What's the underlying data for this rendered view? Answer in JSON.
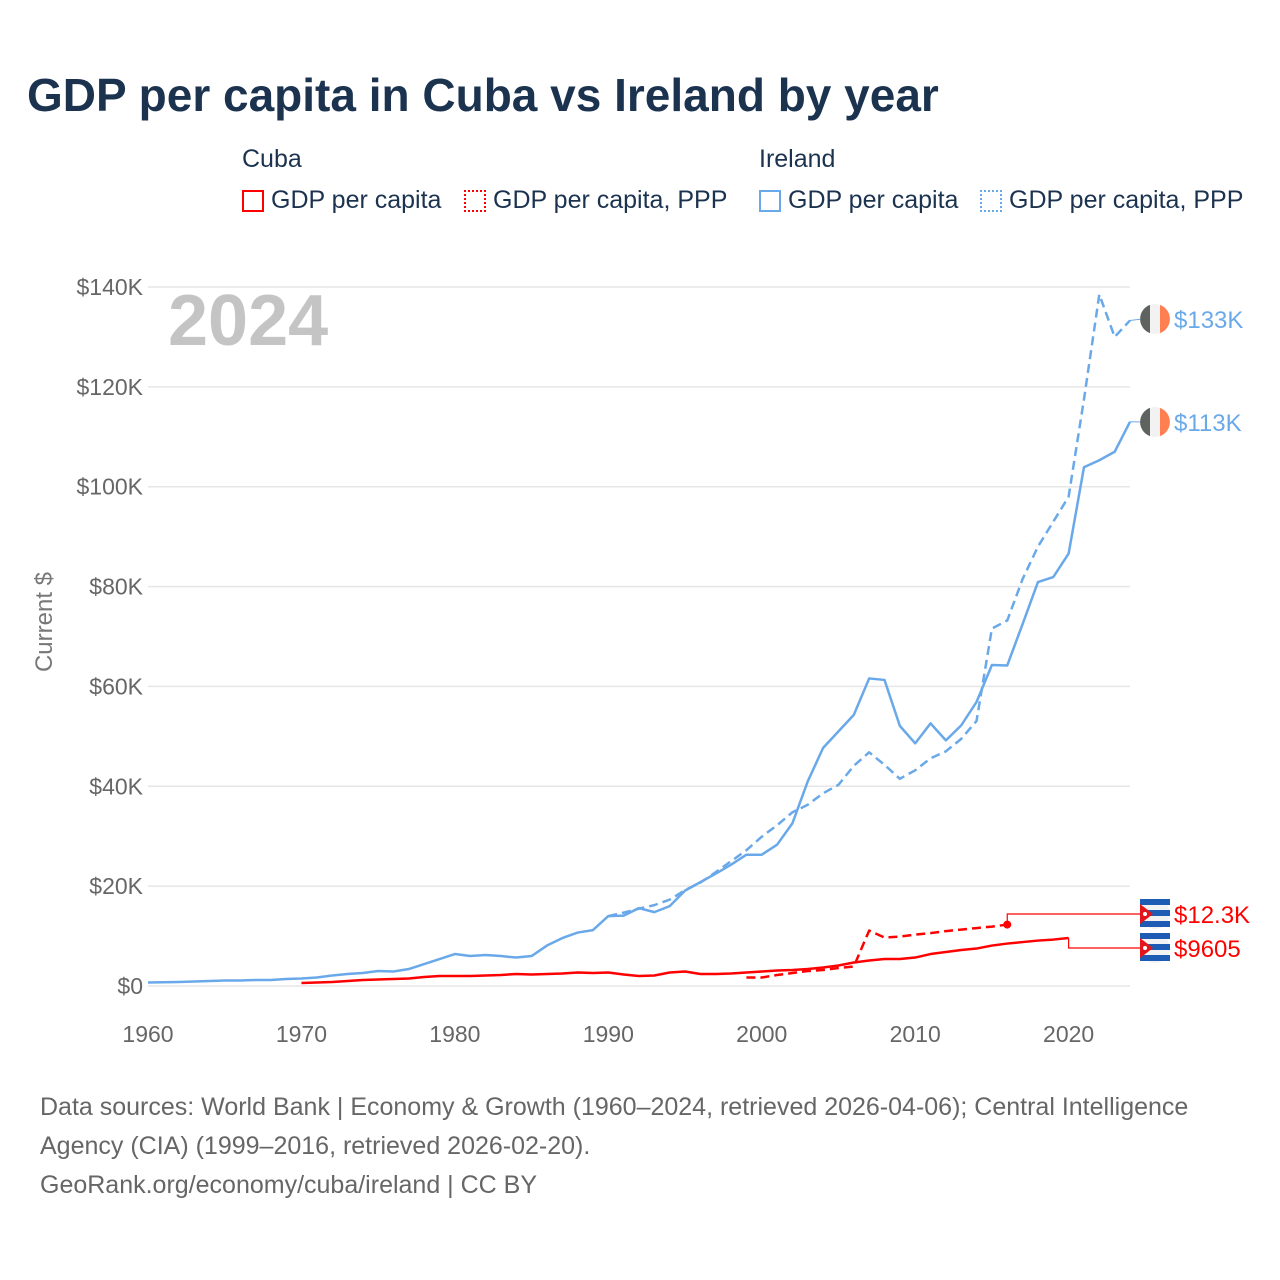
{
  "title": "GDP per capita in Cuba vs Ireland by year",
  "legend": {
    "groups": [
      {
        "label": "Cuba",
        "items": [
          "GDP per capita",
          "GDP per capita, PPP"
        ]
      },
      {
        "label": "Ireland",
        "items": [
          "GDP per capita",
          "GDP per capita, PPP"
        ]
      }
    ]
  },
  "footer": {
    "line1": "Data sources: World Bank | Economy & Growth (1960–2024, retrieved 2026-04-06); Central Intelligence Agency (CIA) (1999–2016, retrieved 2026-02-20).",
    "line2": "GeoRank.org/economy/cuba/ireland | CC BY"
  },
  "chart_data": {
    "type": "line",
    "title": "GDP per capita in Cuba vs Ireland by year",
    "xlabel": "",
    "ylabel": "Current $",
    "year_label": "2024",
    "xlim": [
      1960,
      2024
    ],
    "ylim": [
      0,
      140000
    ],
    "xticks": [
      1960,
      1970,
      1980,
      1990,
      2000,
      2010,
      2020
    ],
    "xtick_labels": [
      "1960",
      "1970",
      "1980",
      "1990",
      "2000",
      "2010",
      "2020"
    ],
    "yticks": [
      0,
      20000,
      40000,
      60000,
      80000,
      100000,
      120000,
      140000
    ],
    "ytick_labels": [
      "$0",
      "$20K",
      "$40K",
      "$60K",
      "$80K",
      "$100K",
      "$120K",
      "$140K"
    ],
    "colors": {
      "cuba": "#ff0000",
      "ireland": "#6aa9e9"
    },
    "series": [
      {
        "name": "Ireland GDP per capita",
        "country": "ireland",
        "dashed": false,
        "start": 1960,
        "end_label": "$113K",
        "values": [
          700,
          750,
          800,
          900,
          1000,
          1100,
          1100,
          1200,
          1200,
          1400,
          1500,
          1700,
          2100,
          2400,
          2600,
          3000,
          2900,
          3400,
          4400,
          5400,
          6400,
          6000,
          6200,
          6000,
          5700,
          6000,
          8100,
          9600,
          10700,
          11200,
          14000,
          14100,
          15600,
          14800,
          16000,
          19100,
          20800,
          22500,
          24300,
          26300,
          26300,
          28300,
          32600,
          41000,
          47700,
          51000,
          54300,
          61600,
          61300,
          52100,
          48600,
          52600,
          49200,
          52200,
          56900,
          64300,
          64200,
          72500,
          80900,
          81900,
          86600,
          103900,
          105300,
          107000,
          113000
        ]
      },
      {
        "name": "Ireland GDP per capita, PPP",
        "country": "ireland",
        "dashed": true,
        "start": 1990,
        "end_label": "$133K",
        "values": [
          14000,
          14700,
          15500,
          16200,
          17300,
          19200,
          20700,
          22800,
          25000,
          27200,
          29900,
          32200,
          34800,
          36300,
          38600,
          40300,
          44100,
          46800,
          44300,
          41500,
          43200,
          45600,
          47000,
          49500,
          53100,
          71600,
          73200,
          81500,
          88000,
          93000,
          98000,
          117500,
          138500,
          130000,
          133300
        ]
      },
      {
        "name": "Cuba GDP per capita",
        "country": "cuba",
        "dashed": false,
        "start": 1970,
        "end_label": "$9605",
        "values": [
          600,
          700,
          800,
          1000,
          1200,
          1300,
          1400,
          1500,
          1800,
          2000,
          2000,
          2000,
          2100,
          2200,
          2400,
          2300,
          2400,
          2500,
          2700,
          2600,
          2700,
          2300,
          2000,
          2100,
          2700,
          2900,
          2400,
          2400,
          2500,
          2700,
          2900,
          3100,
          3200,
          3400,
          3700,
          4100,
          4700,
          5100,
          5400,
          5400,
          5700,
          6400,
          6800,
          7200,
          7500,
          8100,
          8500,
          8800,
          9100,
          9300,
          9605
        ]
      },
      {
        "name": "Cuba GDP per capita, PPP",
        "country": "cuba",
        "dashed": true,
        "start": 1999,
        "end_label": "$12.3K",
        "values": [
          1700,
          1700,
          2200,
          2600,
          3000,
          3200,
          3600,
          3900,
          11100,
          9700,
          9900,
          10300,
          10600,
          11000,
          11300,
          11600,
          11900,
          12300
        ]
      }
    ]
  }
}
